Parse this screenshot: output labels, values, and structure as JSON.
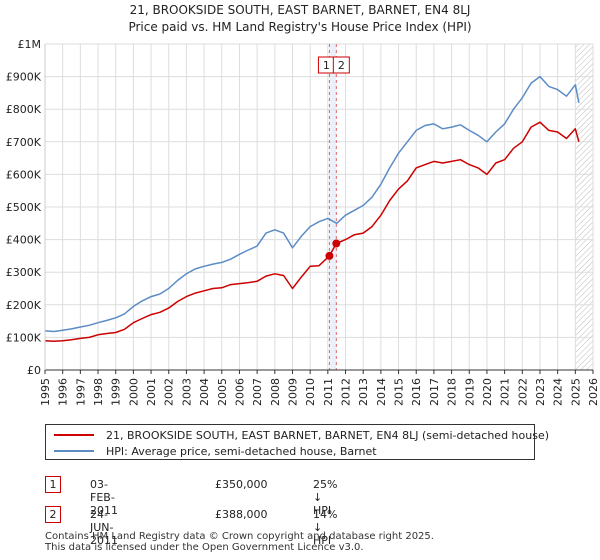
{
  "chart_data": {
    "type": "line",
    "title": "21, BROOKSIDE SOUTH, EAST BARNET, BARNET, EN4 8LJ",
    "subtitle": "Price paid vs. HM Land Registry's House Price Index (HPI)",
    "xlabel": "",
    "ylabel": "",
    "xlim": [
      1995,
      2026
    ],
    "ylim": [
      0,
      1000000
    ],
    "y_ticks": [
      {
        "value": 0,
        "label": "£0"
      },
      {
        "value": 100000,
        "label": "£100K"
      },
      {
        "value": 200000,
        "label": "£200K"
      },
      {
        "value": 300000,
        "label": "£300K"
      },
      {
        "value": 400000,
        "label": "£400K"
      },
      {
        "value": 500000,
        "label": "£500K"
      },
      {
        "value": 600000,
        "label": "£600K"
      },
      {
        "value": 700000,
        "label": "£700K"
      },
      {
        "value": 800000,
        "label": "£800K"
      },
      {
        "value": 900000,
        "label": "£900K"
      },
      {
        "value": 1000000,
        "label": "£1M"
      }
    ],
    "x_ticks": [
      "1995",
      "1996",
      "1997",
      "1998",
      "1999",
      "2000",
      "2001",
      "2002",
      "2003",
      "2004",
      "2005",
      "2006",
      "2007",
      "2008",
      "2009",
      "2010",
      "2011",
      "2012",
      "2013",
      "2014",
      "2015",
      "2016",
      "2017",
      "2018",
      "2019",
      "2020",
      "2021",
      "2022",
      "2023",
      "2024",
      "2025",
      "2026"
    ],
    "grid": true,
    "series": [
      {
        "name": "21, BROOKSIDE SOUTH, EAST BARNET, BARNET, EN4 8LJ (semi-detached house)",
        "color": "#cc0000",
        "x": [
          1995.0,
          1995.5,
          1996.0,
          1996.5,
          1997.0,
          1997.5,
          1998.0,
          1998.5,
          1999.0,
          1999.5,
          2000.0,
          2000.5,
          2001.0,
          2001.5,
          2002.0,
          2002.5,
          2003.0,
          2003.5,
          2004.0,
          2004.5,
          2005.0,
          2005.5,
          2006.0,
          2006.5,
          2007.0,
          2007.5,
          2008.0,
          2008.5,
          2009.0,
          2009.5,
          2010.0,
          2010.5,
          2011.09,
          2011.48,
          2012.0,
          2012.5,
          2013.0,
          2013.5,
          2014.0,
          2014.5,
          2015.0,
          2015.5,
          2016.0,
          2016.5,
          2017.0,
          2017.5,
          2018.0,
          2018.5,
          2019.0,
          2019.5,
          2020.0,
          2020.5,
          2021.0,
          2021.5,
          2022.0,
          2022.5,
          2023.0,
          2023.5,
          2024.0,
          2024.5,
          2025.0,
          2025.2
        ],
        "values": [
          90000,
          88000,
          90000,
          93000,
          97000,
          100000,
          108000,
          112000,
          115000,
          125000,
          145000,
          158000,
          170000,
          177000,
          190000,
          210000,
          225000,
          236000,
          243000,
          250000,
          252000,
          262000,
          265000,
          268000,
          272000,
          288000,
          295000,
          290000,
          250000,
          285000,
          318000,
          320000,
          350000,
          388000,
          400000,
          415000,
          420000,
          440000,
          475000,
          520000,
          555000,
          580000,
          620000,
          630000,
          640000,
          635000,
          640000,
          645000,
          630000,
          620000,
          600000,
          635000,
          645000,
          680000,
          700000,
          745000,
          760000,
          735000,
          730000,
          710000,
          740000,
          700000
        ]
      },
      {
        "name": "HPI: Average price, semi-detached house, Barnet",
        "color": "#5b8cc6",
        "x": [
          1995.0,
          1995.5,
          1996.0,
          1996.5,
          1997.0,
          1997.5,
          1998.0,
          1998.5,
          1999.0,
          1999.5,
          2000.0,
          2000.5,
          2001.0,
          2001.5,
          2002.0,
          2002.5,
          2003.0,
          2003.5,
          2004.0,
          2004.5,
          2005.0,
          2005.5,
          2006.0,
          2006.5,
          2007.0,
          2007.5,
          2008.0,
          2008.5,
          2009.0,
          2009.5,
          2010.0,
          2010.5,
          2011.0,
          2011.5,
          2012.0,
          2012.5,
          2013.0,
          2013.5,
          2014.0,
          2014.5,
          2015.0,
          2015.5,
          2016.0,
          2016.5,
          2017.0,
          2017.5,
          2018.0,
          2018.5,
          2019.0,
          2019.5,
          2020.0,
          2020.5,
          2021.0,
          2021.5,
          2022.0,
          2022.5,
          2023.0,
          2023.5,
          2024.0,
          2024.5,
          2025.0,
          2025.2
        ],
        "values": [
          120000,
          118000,
          122000,
          126000,
          132000,
          137000,
          145000,
          152000,
          160000,
          172000,
          195000,
          212000,
          225000,
          233000,
          250000,
          275000,
          295000,
          310000,
          318000,
          325000,
          330000,
          340000,
          355000,
          368000,
          380000,
          420000,
          430000,
          420000,
          375000,
          410000,
          440000,
          455000,
          465000,
          450000,
          475000,
          490000,
          505000,
          530000,
          570000,
          620000,
          665000,
          700000,
          735000,
          750000,
          755000,
          740000,
          745000,
          752000,
          735000,
          720000,
          700000,
          730000,
          755000,
          800000,
          835000,
          880000,
          900000,
          870000,
          860000,
          840000,
          875000,
          820000
        ]
      }
    ],
    "transactions": [
      {
        "label": "1",
        "x": 2011.09,
        "value": 350000
      },
      {
        "label": "2",
        "x": 2011.48,
        "value": 388000
      }
    ],
    "projection_start": 2025.0
  },
  "legend": {
    "entries": [
      {
        "label": "21, BROOKSIDE SOUTH, EAST BARNET, BARNET, EN4 8LJ (semi-detached house)",
        "color": "#cc0000"
      },
      {
        "label": "HPI: Average price, semi-detached house, Barnet",
        "color": "#5b8cc6"
      }
    ]
  },
  "transactions_table": [
    {
      "num": "1",
      "date": "03-FEB-2011",
      "price": "£350,000",
      "hpi": "25% ↓ HPI"
    },
    {
      "num": "2",
      "date": "24-JUN-2011",
      "price": "£388,000",
      "hpi": "14% ↓ HPI"
    }
  ],
  "footer": {
    "line1": "Contains HM Land Registry data © Crown copyright and database right 2025.",
    "line2": "This data is licensed under the Open Government Licence v3.0."
  }
}
